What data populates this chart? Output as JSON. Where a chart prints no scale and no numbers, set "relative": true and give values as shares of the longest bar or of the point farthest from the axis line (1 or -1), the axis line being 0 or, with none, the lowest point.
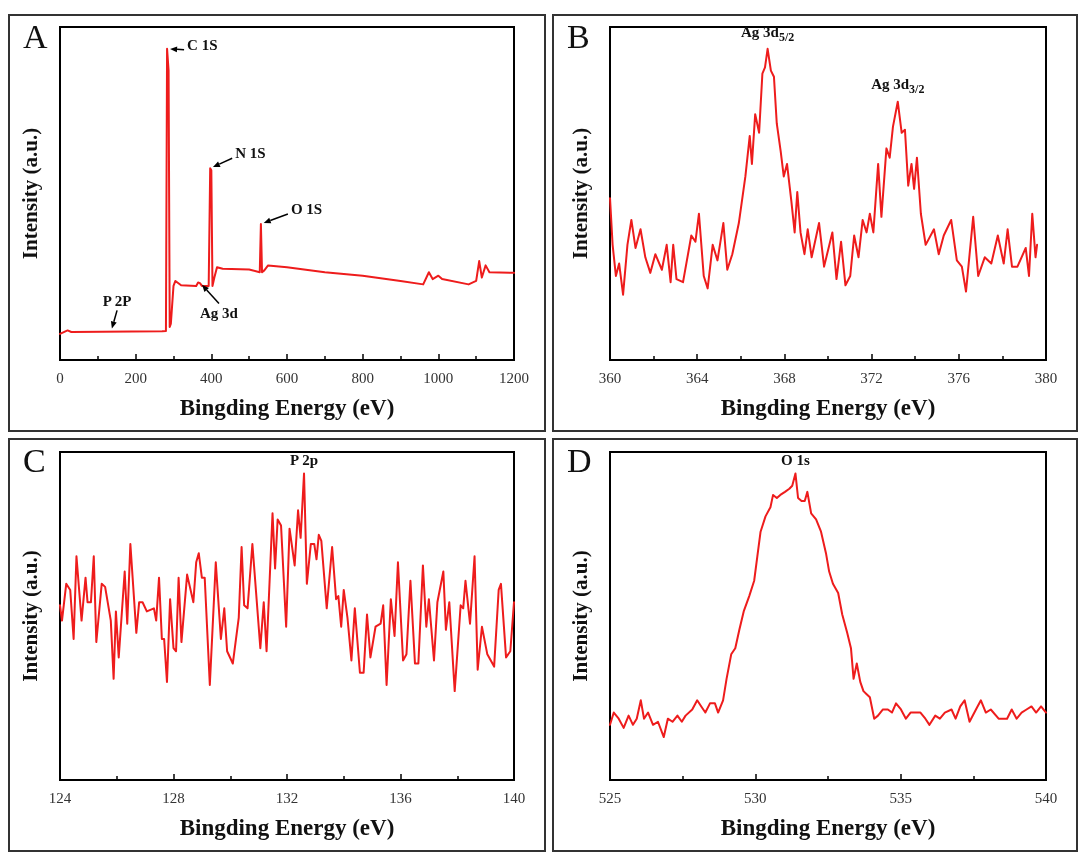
{
  "chart_data": [
    {
      "type": "line",
      "title": "A",
      "xlabel": "Bingding Energy (eV)",
      "ylabel": "Intensity (a.u.)",
      "relative": true,
      "xlim": [
        0,
        1200
      ],
      "xticks": [
        0,
        200,
        400,
        600,
        800,
        1000,
        1200
      ],
      "grid": false,
      "marker": "none",
      "line_style": "solid",
      "annotations": [
        {
          "text": "C 1S",
          "x": 283,
          "y": 1.0
        },
        {
          "text": "N 1S",
          "x": 397,
          "y": 0.616
        },
        {
          "text": "O 1S",
          "x": 531,
          "y": 0.437
        },
        {
          "text": "P 2P",
          "x": 135,
          "y": 0.092
        },
        {
          "text": "Ag 3d",
          "x": 370,
          "y": 0.249
        }
      ],
      "series": [
        {
          "color": "#ee1c1c",
          "x": [
            0,
            20,
            30,
            270,
            280,
            283,
            287,
            290,
            293,
            300,
            305,
            320,
            360,
            365,
            370,
            375,
            393,
            397,
            400,
            403,
            408,
            415,
            430,
            500,
            528,
            531,
            534,
            540,
            550,
            600,
            700,
            800,
            900,
            960,
            975,
            985,
            1000,
            1010,
            1080,
            1100,
            1108,
            1115,
            1125,
            1135,
            1200
          ],
          "values": [
            0.084,
            0.095,
            0.09,
            0.092,
            0.093,
            1.0,
            0.93,
            0.106,
            0.117,
            0.238,
            0.254,
            0.24,
            0.238,
            0.249,
            0.247,
            0.238,
            0.238,
            0.616,
            0.61,
            0.238,
            0.265,
            0.298,
            0.293,
            0.291,
            0.282,
            0.437,
            0.282,
            0.288,
            0.304,
            0.298,
            0.282,
            0.271,
            0.254,
            0.243,
            0.282,
            0.26,
            0.271,
            0.26,
            0.243,
            0.254,
            0.318,
            0.265,
            0.304,
            0.282,
            0.28
          ]
        }
      ]
    },
    {
      "type": "line",
      "title": "B",
      "xlabel": "Bingding Energy (eV)",
      "ylabel": "Intensity (a.u.)",
      "relative": true,
      "xlim": [
        360,
        380
      ],
      "xticks": [
        360,
        364,
        368,
        372,
        376,
        380
      ],
      "grid": false,
      "marker": "none",
      "line_style": "solid",
      "annotations": [
        {
          "text": "Ag 3d$_{5/2}$",
          "x": 367.23,
          "y": 1.0
        },
        {
          "text": "Ag 3d$_{3/2}$",
          "x": 373.2,
          "y": 0.831
        }
      ],
      "series": [
        {
          "color": "#ee1c1c",
          "x": [
            360.0,
            360.12,
            360.27,
            360.42,
            360.6,
            360.8,
            360.98,
            361.17,
            361.4,
            361.62,
            361.85,
            362.08,
            362.38,
            362.6,
            362.78,
            362.9,
            363.05,
            363.35,
            363.73,
            363.92,
            364.08,
            364.3,
            364.48,
            364.71,
            364.93,
            365.2,
            365.38,
            365.61,
            365.91,
            366.21,
            366.41,
            366.51,
            366.66,
            366.84,
            366.99,
            367.11,
            367.23,
            367.38,
            367.52,
            367.65,
            367.83,
            367.97,
            368.12,
            368.32,
            368.47,
            368.59,
            368.74,
            368.92,
            369.07,
            369.25,
            369.59,
            369.82,
            370.2,
            370.39,
            370.6,
            370.8,
            371.02,
            371.2,
            371.4,
            371.59,
            371.77,
            371.92,
            372.08,
            372.3,
            372.45,
            372.68,
            372.83,
            372.98,
            373.2,
            373.38,
            373.53,
            373.68,
            373.83,
            373.95,
            374.08,
            374.26,
            374.48,
            374.86,
            375.08,
            375.31,
            375.65,
            375.91,
            376.14,
            376.33,
            376.66,
            376.89,
            377.19,
            377.49,
            377.79,
            378.06,
            378.24,
            378.44,
            378.69,
            379.07,
            379.22,
            379.37,
            379.52,
            379.59
          ],
          "values": [
            0.52,
            0.37,
            0.27,
            0.31,
            0.21,
            0.37,
            0.45,
            0.36,
            0.42,
            0.33,
            0.28,
            0.34,
            0.29,
            0.37,
            0.25,
            0.37,
            0.26,
            0.25,
            0.4,
            0.38,
            0.47,
            0.27,
            0.23,
            0.37,
            0.32,
            0.44,
            0.29,
            0.34,
            0.44,
            0.59,
            0.72,
            0.63,
            0.79,
            0.73,
            0.92,
            0.94,
            1.0,
            0.93,
            0.91,
            0.76,
            0.67,
            0.59,
            0.63,
            0.51,
            0.41,
            0.54,
            0.41,
            0.34,
            0.42,
            0.33,
            0.44,
            0.3,
            0.41,
            0.26,
            0.38,
            0.24,
            0.27,
            0.4,
            0.33,
            0.45,
            0.41,
            0.47,
            0.41,
            0.63,
            0.46,
            0.68,
            0.65,
            0.75,
            0.83,
            0.73,
            0.74,
            0.56,
            0.63,
            0.55,
            0.65,
            0.47,
            0.37,
            0.42,
            0.34,
            0.4,
            0.45,
            0.32,
            0.3,
            0.22,
            0.46,
            0.27,
            0.33,
            0.31,
            0.4,
            0.31,
            0.42,
            0.3,
            0.3,
            0.36,
            0.27,
            0.47,
            0.33,
            0.37
          ]
        }
      ]
    },
    {
      "type": "line",
      "title": "C",
      "xlabel": "Bingding Energy (eV)",
      "ylabel": "Intensity (a.u.)",
      "relative": true,
      "xlim": [
        124,
        140
      ],
      "xticks": [
        124,
        128,
        132,
        136,
        140
      ],
      "grid": false,
      "marker": "none",
      "line_style": "solid",
      "annotations": [
        {
          "text": "P 2p",
          "x": 132.6,
          "y": 1.0
        }
      ],
      "series": [
        {
          "color": "#ee1c1c",
          "x": [
            124.0,
            124.07,
            124.22,
            124.36,
            124.48,
            124.58,
            124.76,
            124.9,
            124.97,
            125.09,
            125.19,
            125.28,
            125.47,
            125.59,
            125.79,
            125.89,
            125.97,
            126.07,
            126.28,
            126.37,
            126.48,
            126.69,
            126.79,
            126.91,
            127.06,
            127.31,
            127.39,
            127.49,
            127.59,
            127.67,
            127.77,
            127.88,
            128.0,
            128.09,
            128.18,
            128.28,
            128.48,
            128.7,
            128.8,
            128.89,
            129.0,
            129.1,
            129.28,
            129.49,
            129.67,
            129.79,
            129.89,
            130.09,
            130.3,
            130.4,
            130.49,
            130.61,
            130.78,
            131.06,
            131.18,
            131.28,
            131.49,
            131.58,
            131.67,
            131.79,
            131.97,
            132.09,
            132.27,
            132.39,
            132.48,
            132.6,
            132.7,
            132.84,
            132.96,
            133.04,
            133.12,
            133.21,
            133.4,
            133.59,
            133.73,
            133.81,
            133.91,
            134.0,
            134.13,
            134.27,
            134.39,
            134.57,
            134.7,
            134.82,
            134.94,
            135.12,
            135.3,
            135.39,
            135.51,
            135.66,
            135.79,
            135.91,
            136.09,
            136.21,
            136.35,
            136.51,
            136.63,
            136.79,
            136.91,
            137.0,
            137.18,
            137.3,
            137.51,
            137.6,
            137.72,
            137.91,
            138.12,
            138.21,
            138.29,
            138.45,
            138.61,
            138.72,
            138.87,
            139.06,
            139.3,
            139.46,
            139.54,
            139.72,
            139.87,
            140.0
          ],
          "values": [
            0.57,
            0.52,
            0.64,
            0.62,
            0.46,
            0.73,
            0.52,
            0.66,
            0.58,
            0.58,
            0.73,
            0.45,
            0.64,
            0.63,
            0.52,
            0.33,
            0.55,
            0.4,
            0.68,
            0.51,
            0.77,
            0.48,
            0.58,
            0.58,
            0.55,
            0.56,
            0.52,
            0.66,
            0.46,
            0.46,
            0.32,
            0.59,
            0.43,
            0.42,
            0.66,
            0.45,
            0.67,
            0.58,
            0.71,
            0.74,
            0.66,
            0.66,
            0.31,
            0.71,
            0.46,
            0.56,
            0.42,
            0.38,
            0.53,
            0.76,
            0.57,
            0.56,
            0.77,
            0.43,
            0.58,
            0.42,
            0.87,
            0.69,
            0.85,
            0.83,
            0.5,
            0.82,
            0.7,
            0.88,
            0.79,
            1.0,
            0.64,
            0.77,
            0.77,
            0.72,
            0.8,
            0.78,
            0.56,
            0.76,
            0.59,
            0.6,
            0.5,
            0.62,
            0.53,
            0.39,
            0.56,
            0.35,
            0.35,
            0.54,
            0.4,
            0.5,
            0.51,
            0.57,
            0.31,
            0.59,
            0.47,
            0.71,
            0.39,
            0.41,
            0.65,
            0.38,
            0.38,
            0.7,
            0.5,
            0.59,
            0.39,
            0.58,
            0.68,
            0.49,
            0.58,
            0.29,
            0.57,
            0.56,
            0.65,
            0.51,
            0.73,
            0.36,
            0.5,
            0.41,
            0.37,
            0.62,
            0.64,
            0.4,
            0.42,
            0.58
          ]
        }
      ]
    },
    {
      "type": "line",
      "title": "D",
      "xlabel": "Bingding Energy (eV)",
      "ylabel": "Intensity (a.u.)",
      "relative": true,
      "xlim": [
        525,
        540
      ],
      "xticks": [
        525,
        530,
        535,
        540
      ],
      "grid": false,
      "marker": "none",
      "line_style": "solid",
      "annotations": [
        {
          "text": "O 1s",
          "x": 531.38,
          "y": 1.0
        }
      ],
      "series": [
        {
          "color": "#ee1c1c",
          "x": [
            525.0,
            525.13,
            525.3,
            525.47,
            525.64,
            525.79,
            525.92,
            526.06,
            526.17,
            526.31,
            526.48,
            526.65,
            526.85,
            526.99,
            527.15,
            527.32,
            527.47,
            527.6,
            527.83,
            528.0,
            528.14,
            528.28,
            528.44,
            528.61,
            528.72,
            528.89,
            529.01,
            529.17,
            529.31,
            529.45,
            529.6,
            529.79,
            529.96,
            530.07,
            530.18,
            530.35,
            530.52,
            530.61,
            530.74,
            530.86,
            531.02,
            531.17,
            531.27,
            531.38,
            531.47,
            531.59,
            531.7,
            531.79,
            531.92,
            532.09,
            532.26,
            532.43,
            532.54,
            532.67,
            532.85,
            532.99,
            533.16,
            533.29,
            533.38,
            533.49,
            533.61,
            533.72,
            533.83,
            533.94,
            534.09,
            534.22,
            534.39,
            534.56,
            534.7,
            534.84,
            535.01,
            535.18,
            535.34,
            535.51,
            535.68,
            535.85,
            535.99,
            536.19,
            536.35,
            536.52,
            536.75,
            536.89,
            537.05,
            537.2,
            537.37,
            537.59,
            537.76,
            537.93,
            538.1,
            538.37,
            538.66,
            538.82,
            538.99,
            539.16,
            539.33,
            539.5,
            539.66,
            539.83,
            540.0
          ],
          "values": [
            0.18,
            0.22,
            0.2,
            0.17,
            0.21,
            0.18,
            0.2,
            0.26,
            0.2,
            0.22,
            0.18,
            0.19,
            0.14,
            0.2,
            0.19,
            0.21,
            0.19,
            0.21,
            0.23,
            0.26,
            0.24,
            0.22,
            0.25,
            0.25,
            0.22,
            0.26,
            0.33,
            0.41,
            0.43,
            0.49,
            0.55,
            0.6,
            0.65,
            0.73,
            0.81,
            0.86,
            0.89,
            0.93,
            0.92,
            0.93,
            0.94,
            0.95,
            0.96,
            1.0,
            0.92,
            0.91,
            0.91,
            0.94,
            0.87,
            0.85,
            0.81,
            0.74,
            0.68,
            0.64,
            0.61,
            0.54,
            0.48,
            0.43,
            0.33,
            0.38,
            0.32,
            0.29,
            0.28,
            0.27,
            0.2,
            0.21,
            0.23,
            0.23,
            0.22,
            0.25,
            0.23,
            0.2,
            0.22,
            0.22,
            0.22,
            0.2,
            0.18,
            0.21,
            0.2,
            0.22,
            0.23,
            0.2,
            0.24,
            0.26,
            0.19,
            0.23,
            0.26,
            0.22,
            0.23,
            0.2,
            0.2,
            0.23,
            0.2,
            0.22,
            0.23,
            0.24,
            0.22,
            0.24,
            0.22
          ]
        }
      ]
    }
  ]
}
